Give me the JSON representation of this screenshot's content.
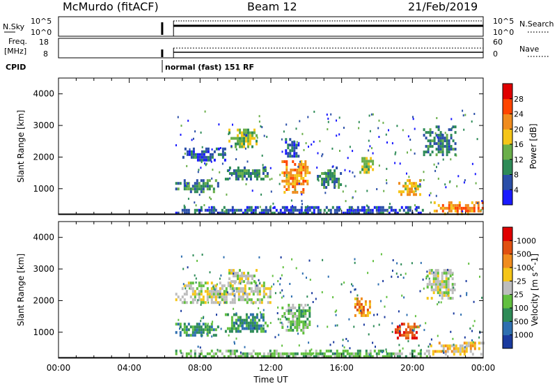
{
  "header": {
    "station": "McMurdo (fitACF)",
    "beam": "Beam 12",
    "date": "21/Feb/2019"
  },
  "top_panels": {
    "nsky_label": "N.Sky",
    "nsearch_label": "N.Search",
    "nsky_ticks": [
      "10^5",
      "10^0"
    ],
    "nsearch_ticks": [
      "10^5",
      "10^0"
    ],
    "freq_label_1": "Freq.",
    "freq_label_2": "[MHz]",
    "freq_ticks": [
      "18",
      "8"
    ],
    "nave_label": "Nave",
    "nave_ticks": [
      "60",
      "0"
    ],
    "cpid_label": "CPID",
    "cpid_text": "normal (fast) 151 RF",
    "nsky_series": [
      {
        "t": 0.0,
        "v": null
      },
      {
        "t": 5.8,
        "v": 0.62
      },
      {
        "t": 6.5,
        "v": 0.62
      },
      {
        "t": 9.0,
        "v": 0.6
      },
      {
        "t": 12.0,
        "v": 0.58
      },
      {
        "t": 15.0,
        "v": 0.61
      },
      {
        "t": 18.0,
        "v": 0.59
      },
      {
        "t": 21.0,
        "v": 0.6
      },
      {
        "t": 24.0,
        "v": 0.62
      }
    ],
    "nave_level": 0.3
  },
  "chart_data": [
    {
      "type": "heatmap",
      "name": "power",
      "title": "",
      "xlabel": "",
      "ylabel": "Slant Range [km]",
      "xlim": [
        0,
        24
      ],
      "ylim": [
        180,
        4500
      ],
      "yticks": [
        "1000",
        "2000",
        "3000",
        "4000"
      ],
      "colorbar_label": "Power [dB]",
      "colorbar_ticks": [
        "4",
        "8",
        "12",
        "16",
        "20",
        "24",
        "28"
      ],
      "colorbar_colors": [
        "#1a1aff",
        "#2b4fa8",
        "#2e8b57",
        "#6aaf4a",
        "#f5c518",
        "#f08c1e",
        "#ff4500",
        "#e00000"
      ],
      "regions": [
        {
          "t0": 9.6,
          "t1": 11.2,
          "r0": 2300,
          "r1": 2900,
          "level": 3
        },
        {
          "t0": 7.0,
          "t1": 9.4,
          "r0": 1900,
          "r1": 2300,
          "level": 1
        },
        {
          "t0": 6.6,
          "t1": 9.0,
          "r0": 900,
          "r1": 1300,
          "level": 2
        },
        {
          "t0": 9.4,
          "t1": 11.8,
          "r0": 1300,
          "r1": 1700,
          "level": 2
        },
        {
          "t0": 12.6,
          "t1": 14.2,
          "r0": 900,
          "r1": 1900,
          "level": 5
        },
        {
          "t0": 12.8,
          "t1": 13.6,
          "r0": 2000,
          "r1": 2600,
          "level": 1
        },
        {
          "t0": 14.6,
          "t1": 16.0,
          "r0": 1000,
          "r1": 1700,
          "level": 2
        },
        {
          "t0": 17.0,
          "t1": 17.8,
          "r0": 1500,
          "r1": 2000,
          "level": 3
        },
        {
          "t0": 19.2,
          "t1": 20.4,
          "r0": 800,
          "r1": 1300,
          "level": 4
        },
        {
          "t0": 20.6,
          "t1": 22.4,
          "r0": 2100,
          "r1": 3000,
          "level": 2
        },
        {
          "t0": 21.2,
          "t1": 24.0,
          "r0": 200,
          "r1": 600,
          "level": 5
        },
        {
          "t0": 6.6,
          "t1": 21.0,
          "r0": 200,
          "r1": 450,
          "level": 1
        }
      ]
    },
    {
      "type": "heatmap",
      "name": "velocity",
      "title": "",
      "xlabel": "Time UT",
      "ylabel": "Slant Range [km]",
      "xlim": [
        0,
        24
      ],
      "ylim": [
        180,
        4500
      ],
      "xticks": [
        "00:00",
        "04:00",
        "08:00",
        "12:00",
        "16:00",
        "20:00",
        "00:00"
      ],
      "yticks": [
        "1000",
        "2000",
        "3000",
        "4000"
      ],
      "colorbar_label": "Velocity [m s^-1]",
      "colorbar_ticks": [
        "1000",
        "500",
        "100",
        "25",
        "-25",
        "-100",
        "-500",
        "-1000"
      ],
      "colorbar_colors": [
        "#1a3a9e",
        "#2e6fb0",
        "#2e8b57",
        "#62c040",
        "#bdbdbd",
        "#f5c518",
        "#f08c1e",
        "#e05010",
        "#e00000"
      ],
      "regions": [
        {
          "t0": 6.6,
          "t1": 12.0,
          "r0": 1900,
          "r1": 2600,
          "level": 4
        },
        {
          "t0": 9.6,
          "t1": 11.2,
          "r0": 2600,
          "r1": 3000,
          "level": 4
        },
        {
          "t0": 6.6,
          "t1": 9.0,
          "r0": 900,
          "r1": 1300,
          "level": 2
        },
        {
          "t0": 9.4,
          "t1": 11.8,
          "r0": 1000,
          "r1": 1600,
          "level": 2
        },
        {
          "t0": 12.6,
          "t1": 14.2,
          "r0": 1000,
          "r1": 1900,
          "level": 3
        },
        {
          "t0": 16.6,
          "t1": 17.6,
          "r0": 1500,
          "r1": 2100,
          "level": 6
        },
        {
          "t0": 19.0,
          "t1": 20.4,
          "r0": 800,
          "r1": 1300,
          "level": 7
        },
        {
          "t0": 20.8,
          "t1": 22.4,
          "r0": 2100,
          "r1": 3000,
          "level": 4
        },
        {
          "t0": 21.0,
          "t1": 24.0,
          "r0": 300,
          "r1": 700,
          "level": 5
        },
        {
          "t0": 6.6,
          "t1": 21.0,
          "r0": 200,
          "r1": 450,
          "level": 3
        }
      ]
    }
  ]
}
